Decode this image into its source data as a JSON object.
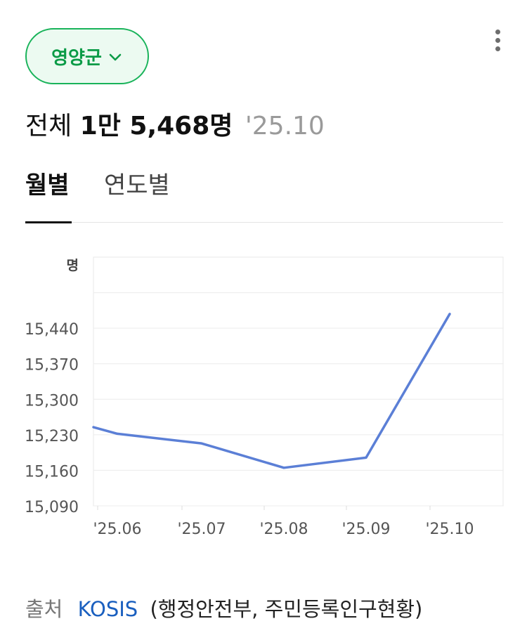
{
  "region": {
    "name": "영양군"
  },
  "summary": {
    "label": "전체",
    "value": "1만 5,468명",
    "date": "'25.10"
  },
  "tabs": [
    {
      "label": "월별",
      "active": true
    },
    {
      "label": "연도별",
      "active": false
    }
  ],
  "source": {
    "label": "출처",
    "link": "KOSIS",
    "description": "(행정안전부, 주민등록인구현황)"
  },
  "colors": {
    "accent": "#19b35a",
    "line": "#5b7fd6",
    "link": "#1a5fbf"
  },
  "chart_data": {
    "type": "line",
    "unit": "명",
    "categories": [
      "'25.06",
      "'25.07",
      "'25.08",
      "'25.09",
      "'25.10"
    ],
    "series": [
      {
        "values": [
          15232,
          15213,
          15165,
          15185,
          15468
        ]
      }
    ],
    "x_start_value": 15245,
    "yticks": [
      "15,090",
      "15,160",
      "15,230",
      "15,300",
      "15,370",
      "15,440"
    ],
    "ylim": [
      15090,
      15580
    ],
    "grid": true
  }
}
